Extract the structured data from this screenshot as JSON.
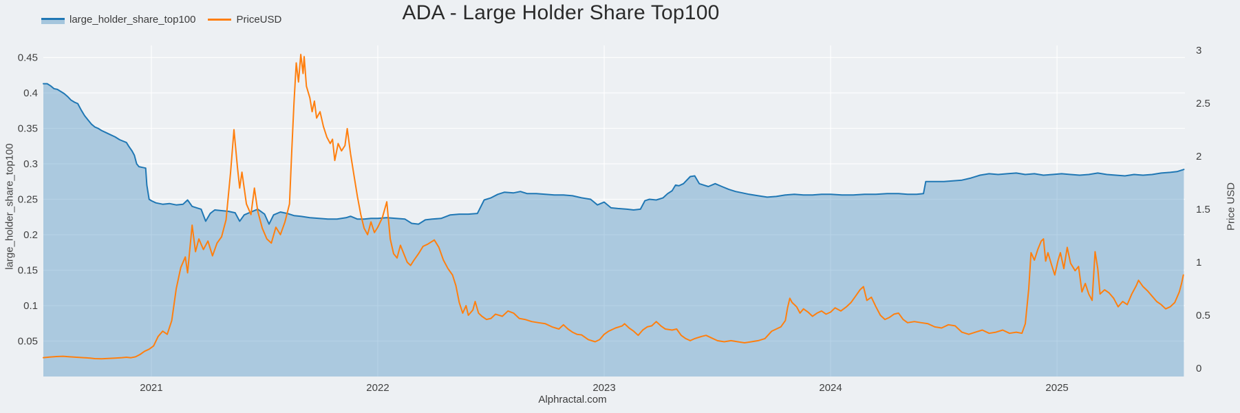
{
  "title": "ADA - Large Holder Share Top100",
  "footer": "Alphractal.com",
  "colors": {
    "background": "#edf0f3",
    "grid": "#ffffff",
    "blue_line": "#1f77b4",
    "blue_area_fill": "rgba(31,119,180,0.32)",
    "orange_line": "#ff7f0e",
    "text": "#3b3b3b"
  },
  "chart_data": {
    "type": "line",
    "title": "ADA - Large Holder Share Top100",
    "legend_position": "top-left",
    "grid": true,
    "x_axis": {
      "range": [
        2020.523,
        2025.565
      ],
      "ticks": [
        2021,
        2022,
        2023,
        2024,
        2025
      ],
      "tick_labels": [
        "2021",
        "2022",
        "2023",
        "2024",
        "2025"
      ]
    },
    "y_left": {
      "label": "large_holder_share_top100",
      "range": [
        0,
        0.467
      ],
      "ticks": [
        0.05,
        0.1,
        0.15,
        0.2,
        0.25,
        0.3,
        0.35,
        0.4,
        0.45
      ],
      "tick_labels": [
        "0.05",
        "0.1",
        "0.15",
        "0.2",
        "0.25",
        "0.3",
        "0.35",
        "0.4",
        "0.45"
      ]
    },
    "y_right": {
      "label": "Price USD",
      "range": [
        -0.078,
        3.045
      ],
      "ticks": [
        0,
        0.5,
        1,
        1.5,
        2,
        2.5,
        3
      ],
      "tick_labels": [
        "0",
        "0.5",
        "1",
        "1.5",
        "2",
        "2.5",
        "3"
      ]
    },
    "series": [
      {
        "name": "large_holder_share_top100",
        "type": "area",
        "axis": "left",
        "color": "#1f77b4",
        "x": [
          2020.523,
          2020.54,
          2020.555,
          2020.57,
          2020.585,
          2020.6,
          2020.615,
          2020.63,
          2020.645,
          2020.66,
          2020.675,
          2020.69,
          2020.705,
          2020.72,
          2020.735,
          2020.75,
          2020.765,
          2020.78,
          2020.8,
          2020.82,
          2020.84,
          2020.86,
          2020.875,
          2020.89,
          2020.9,
          2020.915,
          2020.925,
          2020.935,
          2020.945,
          2020.96,
          2020.975,
          2020.98,
          2020.99,
          2021.0,
          2021.02,
          2021.05,
          2021.08,
          2021.11,
          2021.14,
          2021.16,
          2021.18,
          2021.2,
          2021.22,
          2021.24,
          2021.26,
          2021.28,
          2021.31,
          2021.34,
          2021.37,
          2021.39,
          2021.41,
          2021.44,
          2021.47,
          2021.5,
          2021.52,
          2021.54,
          2021.57,
          2021.6,
          2021.63,
          2021.66,
          2021.7,
          2021.74,
          2021.78,
          2021.82,
          2021.86,
          2021.88,
          2021.91,
          2021.94,
          2021.97,
          2022.0,
          2022.04,
          2022.08,
          2022.12,
          2022.15,
          2022.18,
          2022.21,
          2022.24,
          2022.28,
          2022.32,
          2022.36,
          2022.4,
          2022.44,
          2022.47,
          2022.5,
          2022.53,
          2022.56,
          2022.6,
          2022.63,
          2022.66,
          2022.7,
          2022.74,
          2022.78,
          2022.82,
          2022.86,
          2022.9,
          2022.94,
          2022.97,
          2023.0,
          2023.03,
          2023.06,
          2023.1,
          2023.13,
          2023.16,
          2023.18,
          2023.2,
          2023.23,
          2023.26,
          2023.28,
          2023.3,
          2023.315,
          2023.33,
          2023.35,
          2023.38,
          2023.4,
          2023.42,
          2023.44,
          2023.46,
          2023.49,
          2023.52,
          2023.55,
          2023.58,
          2023.61,
          2023.64,
          2023.68,
          2023.72,
          2023.76,
          2023.8,
          2023.84,
          2023.88,
          2023.92,
          2023.96,
          2024.0,
          2024.05,
          2024.1,
          2024.15,
          2024.2,
          2024.25,
          2024.3,
          2024.34,
          2024.38,
          2024.41,
          2024.42,
          2024.46,
          2024.5,
          2024.54,
          2024.58,
          2024.62,
          2024.66,
          2024.7,
          2024.74,
          2024.78,
          2024.82,
          2024.86,
          2024.9,
          2024.94,
          2024.98,
          2025.02,
          2025.06,
          2025.1,
          2025.14,
          2025.18,
          2025.22,
          2025.26,
          2025.3,
          2025.34,
          2025.38,
          2025.42,
          2025.46,
          2025.5,
          2025.53,
          2025.56
        ],
        "y": [
          0.413,
          0.413,
          0.41,
          0.406,
          0.405,
          0.402,
          0.399,
          0.395,
          0.39,
          0.387,
          0.385,
          0.376,
          0.368,
          0.362,
          0.356,
          0.352,
          0.35,
          0.347,
          0.344,
          0.341,
          0.338,
          0.334,
          0.332,
          0.33,
          0.325,
          0.318,
          0.312,
          0.3,
          0.296,
          0.295,
          0.294,
          0.27,
          0.25,
          0.248,
          0.245,
          0.243,
          0.244,
          0.242,
          0.243,
          0.249,
          0.24,
          0.238,
          0.236,
          0.219,
          0.23,
          0.235,
          0.234,
          0.233,
          0.231,
          0.219,
          0.228,
          0.232,
          0.236,
          0.229,
          0.215,
          0.228,
          0.232,
          0.23,
          0.227,
          0.226,
          0.224,
          0.223,
          0.222,
          0.222,
          0.224,
          0.226,
          0.222,
          0.222,
          0.223,
          0.223,
          0.224,
          0.223,
          0.222,
          0.216,
          0.215,
          0.221,
          0.222,
          0.223,
          0.228,
          0.229,
          0.229,
          0.23,
          0.249,
          0.252,
          0.257,
          0.26,
          0.259,
          0.261,
          0.258,
          0.258,
          0.257,
          0.256,
          0.256,
          0.255,
          0.252,
          0.25,
          0.242,
          0.246,
          0.238,
          0.237,
          0.236,
          0.235,
          0.236,
          0.248,
          0.25,
          0.249,
          0.252,
          0.258,
          0.262,
          0.27,
          0.269,
          0.272,
          0.282,
          0.283,
          0.272,
          0.27,
          0.268,
          0.272,
          0.268,
          0.264,
          0.261,
          0.259,
          0.257,
          0.255,
          0.253,
          0.254,
          0.256,
          0.257,
          0.256,
          0.256,
          0.257,
          0.257,
          0.256,
          0.256,
          0.257,
          0.257,
          0.258,
          0.258,
          0.257,
          0.257,
          0.258,
          0.275,
          0.275,
          0.275,
          0.276,
          0.277,
          0.28,
          0.284,
          0.286,
          0.285,
          0.286,
          0.287,
          0.285,
          0.286,
          0.284,
          0.285,
          0.286,
          0.285,
          0.284,
          0.285,
          0.287,
          0.285,
          0.284,
          0.283,
          0.285,
          0.284,
          0.285,
          0.287,
          0.288,
          0.289,
          0.292
        ]
      },
      {
        "name": "PriceUSD",
        "type": "line",
        "axis": "right",
        "color": "#ff7f0e",
        "x": [
          2020.523,
          2020.55,
          2020.58,
          2020.61,
          2020.64,
          2020.67,
          2020.7,
          2020.73,
          2020.75,
          2020.78,
          2020.81,
          2020.84,
          2020.87,
          2020.89,
          2020.91,
          2020.93,
          2020.95,
          2020.97,
          2020.99,
          2021.01,
          2021.03,
          2021.05,
          2021.07,
          2021.09,
          2021.11,
          2021.13,
          2021.15,
          2021.16,
          2021.18,
          2021.195,
          2021.21,
          2021.23,
          2021.25,
          2021.27,
          2021.29,
          2021.31,
          2021.33,
          2021.35,
          2021.365,
          2021.38,
          2021.39,
          2021.4,
          2021.42,
          2021.44,
          2021.455,
          2021.47,
          2021.49,
          2021.51,
          2021.53,
          2021.55,
          2021.57,
          2021.59,
          2021.61,
          2021.62,
          2021.63,
          2021.64,
          2021.65,
          2021.66,
          2021.67,
          2021.675,
          2021.685,
          2021.7,
          2021.71,
          2021.72,
          2021.73,
          2021.745,
          2021.76,
          2021.775,
          2021.79,
          2021.8,
          2021.81,
          2021.825,
          2021.84,
          2021.855,
          2021.865,
          2021.88,
          2021.895,
          2021.91,
          2021.925,
          2021.94,
          2021.955,
          2021.97,
          2021.985,
          2022.0,
          2022.02,
          2022.04,
          2022.055,
          2022.07,
          2022.085,
          2022.1,
          2022.115,
          2022.13,
          2022.145,
          2022.16,
          2022.18,
          2022.2,
          2022.22,
          2022.25,
          2022.27,
          2022.29,
          2022.31,
          2022.33,
          2022.345,
          2022.36,
          2022.375,
          2022.39,
          2022.4,
          2022.42,
          2022.43,
          2022.445,
          2022.46,
          2022.48,
          2022.5,
          2022.52,
          2022.55,
          2022.575,
          2022.6,
          2022.625,
          2022.65,
          2022.68,
          2022.71,
          2022.74,
          2022.77,
          2022.8,
          2022.82,
          2022.84,
          2022.86,
          2022.88,
          2022.9,
          2022.93,
          2022.96,
          2022.98,
          2023.0,
          2023.02,
          2023.05,
          2023.08,
          2023.09,
          2023.11,
          2023.13,
          2023.15,
          2023.17,
          2023.19,
          2023.21,
          2023.23,
          2023.25,
          2023.27,
          2023.3,
          2023.32,
          2023.34,
          2023.36,
          2023.38,
          2023.4,
          2023.43,
          2023.45,
          2023.47,
          2023.5,
          2023.53,
          2023.56,
          2023.59,
          2023.62,
          2023.65,
          2023.68,
          2023.71,
          2023.74,
          2023.76,
          2023.78,
          2023.8,
          2023.81,
          2023.82,
          2023.83,
          2023.85,
          2023.865,
          2023.88,
          2023.9,
          2023.92,
          2023.94,
          2023.96,
          2023.98,
          2024.0,
          2024.02,
          2024.045,
          2024.07,
          2024.09,
          2024.11,
          2024.13,
          2024.145,
          2024.16,
          2024.18,
          2024.2,
          2024.22,
          2024.24,
          2024.26,
          2024.28,
          2024.3,
          2024.32,
          2024.34,
          2024.37,
          2024.4,
          2024.43,
          2024.46,
          2024.49,
          2024.52,
          2024.55,
          2024.58,
          2024.61,
          2024.64,
          2024.67,
          2024.7,
          2024.73,
          2024.76,
          2024.79,
          2024.82,
          2024.845,
          2024.86,
          2024.875,
          2024.885,
          2024.9,
          2024.915,
          2024.93,
          2024.94,
          2024.95,
          2024.96,
          2024.975,
          2024.99,
          2025.005,
          2025.015,
          2025.03,
          2025.045,
          2025.06,
          2025.08,
          2025.095,
          2025.11,
          2025.125,
          2025.14,
          2025.155,
          2025.168,
          2025.18,
          2025.19,
          2025.21,
          2025.23,
          2025.25,
          2025.27,
          2025.29,
          2025.31,
          2025.33,
          2025.35,
          2025.36,
          2025.38,
          2025.4,
          2025.42,
          2025.44,
          2025.46,
          2025.48,
          2025.5,
          2025.52,
          2025.54,
          2025.55,
          2025.558
        ],
        "y": [
          0.1,
          0.105,
          0.11,
          0.113,
          0.108,
          0.104,
          0.1,
          0.096,
          0.091,
          0.089,
          0.093,
          0.096,
          0.1,
          0.104,
          0.099,
          0.108,
          0.13,
          0.16,
          0.18,
          0.21,
          0.3,
          0.35,
          0.32,
          0.45,
          0.75,
          0.95,
          1.05,
          0.9,
          1.35,
          1.1,
          1.22,
          1.12,
          1.2,
          1.06,
          1.18,
          1.24,
          1.4,
          1.85,
          2.25,
          1.9,
          1.7,
          1.85,
          1.55,
          1.45,
          1.7,
          1.48,
          1.32,
          1.22,
          1.18,
          1.33,
          1.26,
          1.38,
          1.55,
          2.05,
          2.5,
          2.88,
          2.7,
          2.96,
          2.78,
          2.94,
          2.66,
          2.55,
          2.42,
          2.52,
          2.36,
          2.42,
          2.28,
          2.18,
          2.12,
          2.16,
          1.96,
          2.12,
          2.05,
          2.1,
          2.26,
          2.02,
          1.82,
          1.62,
          1.45,
          1.32,
          1.26,
          1.38,
          1.28,
          1.33,
          1.42,
          1.57,
          1.22,
          1.08,
          1.04,
          1.16,
          1.08,
          1.0,
          0.97,
          1.02,
          1.08,
          1.15,
          1.17,
          1.21,
          1.14,
          1.02,
          0.94,
          0.88,
          0.78,
          0.62,
          0.52,
          0.59,
          0.5,
          0.55,
          0.63,
          0.52,
          0.49,
          0.46,
          0.47,
          0.51,
          0.49,
          0.54,
          0.52,
          0.47,
          0.46,
          0.44,
          0.43,
          0.42,
          0.39,
          0.37,
          0.41,
          0.37,
          0.34,
          0.32,
          0.315,
          0.27,
          0.25,
          0.27,
          0.32,
          0.35,
          0.38,
          0.4,
          0.42,
          0.38,
          0.35,
          0.31,
          0.36,
          0.39,
          0.4,
          0.44,
          0.4,
          0.37,
          0.36,
          0.37,
          0.31,
          0.28,
          0.26,
          0.28,
          0.3,
          0.31,
          0.29,
          0.26,
          0.25,
          0.26,
          0.25,
          0.24,
          0.25,
          0.26,
          0.28,
          0.35,
          0.37,
          0.39,
          0.45,
          0.57,
          0.66,
          0.62,
          0.58,
          0.52,
          0.56,
          0.53,
          0.49,
          0.52,
          0.54,
          0.51,
          0.53,
          0.57,
          0.54,
          0.58,
          0.62,
          0.68,
          0.74,
          0.77,
          0.64,
          0.67,
          0.58,
          0.5,
          0.46,
          0.48,
          0.51,
          0.52,
          0.46,
          0.43,
          0.44,
          0.43,
          0.42,
          0.39,
          0.38,
          0.41,
          0.4,
          0.34,
          0.32,
          0.34,
          0.36,
          0.33,
          0.34,
          0.36,
          0.33,
          0.34,
          0.33,
          0.42,
          0.75,
          1.09,
          1.02,
          1.12,
          1.2,
          1.22,
          1.01,
          1.09,
          0.98,
          0.88,
          1.02,
          1.09,
          0.94,
          1.14,
          0.99,
          0.92,
          0.96,
          0.72,
          0.8,
          0.7,
          0.64,
          1.1,
          0.94,
          0.7,
          0.74,
          0.71,
          0.66,
          0.58,
          0.63,
          0.6,
          0.7,
          0.78,
          0.83,
          0.77,
          0.73,
          0.68,
          0.63,
          0.6,
          0.56,
          0.58,
          0.62,
          0.72,
          0.8,
          0.88
        ]
      }
    ]
  }
}
